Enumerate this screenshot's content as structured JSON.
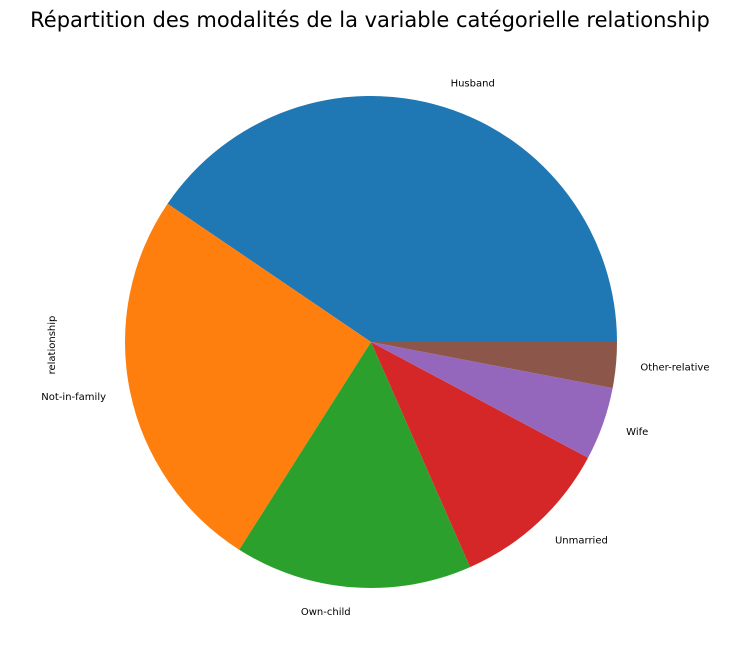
{
  "chart_data": {
    "type": "pie",
    "title": "Répartition des modalités de la variable catégorielle relationship",
    "ylabel": "relationship",
    "start_angle_deg": 0,
    "direction": "counterclockwise",
    "categories": [
      "Husband",
      "Not-in-family",
      "Own-child",
      "Unmarried",
      "Wife",
      "Other-relative"
    ],
    "values": [
      40.5,
      25.5,
      15.6,
      10.6,
      4.8,
      3.0
    ],
    "colors": [
      "#1f77b4",
      "#ff7f0e",
      "#2ca02c",
      "#d62728",
      "#9467bd",
      "#8c564b"
    ],
    "legend": "none"
  }
}
